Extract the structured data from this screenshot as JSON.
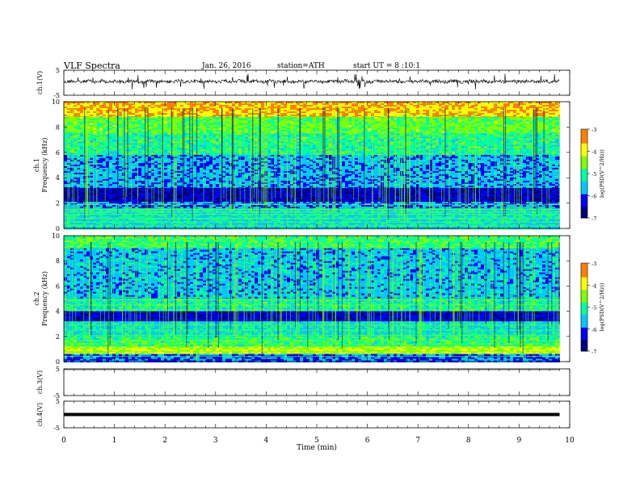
{
  "header": {
    "title": "VLF Spectra",
    "date": "Jan. 26, 2016",
    "station": "station=ATH",
    "start": "start UT = 8 :10:1"
  },
  "chart_data": [
    {
      "type": "line",
      "name": "ch1-waveform",
      "ylabel": "ch.1(V)",
      "ylim": [
        -5,
        5
      ],
      "yticks": [
        "5",
        "-5"
      ],
      "xlim": [
        0,
        10
      ],
      "trace_level": 0.5,
      "data_end_min": 9.8
    },
    {
      "type": "heatmap",
      "name": "ch1-spectrogram",
      "ylabel": "ch.1 Frequency (kHz)",
      "ylim": [
        0,
        10
      ],
      "yticks": [
        "10",
        "8",
        "6",
        "4",
        "2",
        "0"
      ],
      "xlim": [
        0,
        10
      ],
      "data_end_min": 9.8,
      "bands": [
        {
          "from": 10.0,
          "to": 8.8,
          "level": 0.85
        },
        {
          "from": 8.8,
          "to": 7.5,
          "level": 0.6
        },
        {
          "from": 7.5,
          "to": 5.8,
          "level": 0.5
        },
        {
          "from": 5.8,
          "to": 3.2,
          "level": 0.33
        },
        {
          "from": 3.2,
          "to": 2.1,
          "level": 0.14
        },
        {
          "from": 2.1,
          "to": 1.6,
          "level": 0.3
        },
        {
          "from": 1.6,
          "to": 0.0,
          "level": 0.42
        }
      ],
      "hlines": [
        1.9,
        1.5,
        1.3,
        1.1,
        0.8,
        0.5,
        0.2
      ],
      "colorbar": {
        "label": "log(PSD(V^2/Hz))",
        "range": [
          -7,
          -3
        ],
        "ticks": [
          "-3",
          "-4",
          "-5",
          "-6",
          "-7"
        ]
      }
    },
    {
      "type": "heatmap",
      "name": "ch2-spectrogram",
      "ylabel": "ch.2 Frequency (kHz)",
      "ylim": [
        0,
        10
      ],
      "yticks": [
        "10",
        "8",
        "6",
        "4",
        "2",
        "0"
      ],
      "xlim": [
        0,
        10
      ],
      "data_end_min": 9.8,
      "bands": [
        {
          "from": 10.0,
          "to": 9.0,
          "level": 0.55
        },
        {
          "from": 9.0,
          "to": 5.0,
          "level": 0.36
        },
        {
          "from": 5.0,
          "to": 4.0,
          "level": 0.48
        },
        {
          "from": 4.0,
          "to": 3.2,
          "level": 0.16
        },
        {
          "from": 3.2,
          "to": 2.0,
          "level": 0.42
        },
        {
          "from": 2.0,
          "to": 1.2,
          "level": 0.52
        },
        {
          "from": 1.2,
          "to": 0.6,
          "level": 0.72
        },
        {
          "from": 0.6,
          "to": 0.0,
          "level": 0.28
        }
      ],
      "hlines": [
        4.9,
        4.5,
        4.1,
        2.9,
        2.5,
        2.1,
        1.7,
        1.4,
        1.1,
        0.8,
        0.4
      ],
      "colorbar": {
        "label": "log(PSD(V^2/Hz))",
        "range": [
          -7,
          -3
        ],
        "ticks": [
          "-3",
          "-4",
          "-5",
          "-6",
          "-7"
        ]
      }
    },
    {
      "type": "line",
      "name": "ch3-waveform",
      "ylabel": "ch.3(V)",
      "ylim": [
        -5,
        5
      ],
      "yticks": [
        "5",
        "-5"
      ],
      "xlim": [
        0,
        10
      ],
      "trace_level": 5.0,
      "data_end_min": 9.8
    },
    {
      "type": "line",
      "name": "ch4-waveform",
      "ylabel": "ch.4(V)",
      "ylim": [
        -5,
        5
      ],
      "yticks": [
        "5",
        "-5"
      ],
      "xlim": [
        0,
        10
      ],
      "trace_level": 0.0,
      "data_end_min": 9.8
    }
  ],
  "xaxis": {
    "label": "Time (min)",
    "ticks": [
      "0",
      "1",
      "2",
      "3",
      "4",
      "5",
      "6",
      "7",
      "8",
      "9",
      "10"
    ]
  },
  "colors": {
    "colormap": [
      "#000080",
      "#0000ff",
      "#00c8ff",
      "#00ffa0",
      "#80ff00",
      "#ffff00",
      "#ff8000",
      "#ff0000",
      "#ffffff"
    ]
  }
}
